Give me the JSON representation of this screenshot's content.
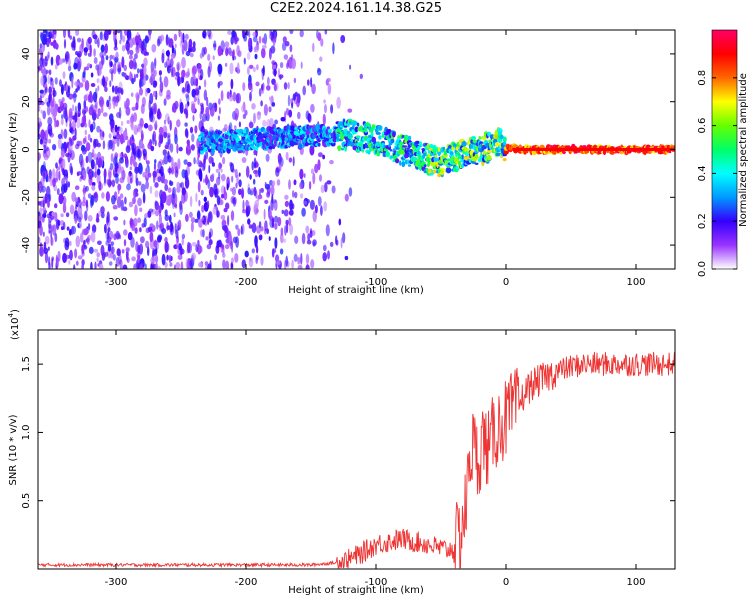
{
  "title": "C2E2.2024.161.14.38.G25",
  "chart_data": [
    {
      "type": "heatmap",
      "xlabel": "Height of straight line (km)",
      "ylabel": "Frequency (Hz)",
      "xlim": [
        -360,
        130
      ],
      "ylim": [
        -50,
        50
      ],
      "xticks": [
        -300,
        -200,
        -100,
        0,
        100
      ],
      "yticks": [
        -40,
        -20,
        0,
        20,
        40
      ],
      "colorbar": {
        "label": "Normalized spectral amplitude",
        "range": [
          0,
          1
        ],
        "ticks": [
          "0.0",
          "0.2",
          "0.4",
          "0.6",
          "0.8"
        ],
        "tick_values": [
          0.0,
          0.2,
          0.4,
          0.6,
          0.8
        ],
        "colors": [
          "#ffffff",
          "#9933ff",
          "#3300ff",
          "#0099ff",
          "#00ffff",
          "#00ff66",
          "#66ff00",
          "#ffff00",
          "#ff6600",
          "#ff0000",
          "#ff0066"
        ]
      },
      "ridge": {
        "x": [
          -230,
          -200,
          -170,
          -140,
          -120,
          -100,
          -80,
          -60,
          -50,
          -40,
          -30,
          -20,
          -10,
          -5,
          0,
          5,
          10,
          130
        ],
        "y": [
          3,
          4,
          5,
          6,
          6,
          4,
          0,
          -4,
          -6,
          -3,
          0,
          0,
          1,
          3,
          0,
          1,
          0,
          0
        ]
      },
      "noise_region_x": [
        -360,
        -140
      ]
    },
    {
      "type": "line",
      "xlabel": "Height of straight line (km)",
      "ylabel": "SNR (10 * v/v)",
      "y_multiplier_label": "(x10",
      "y_multiplier_exp": "4",
      "y_multiplier_close": ")",
      "xlim": [
        -360,
        130
      ],
      "ylim": [
        0,
        1.75
      ],
      "xticks": [
        -300,
        -200,
        -100,
        0,
        100
      ],
      "yticks": [
        0.5,
        1.0,
        1.5
      ],
      "ytick_labels": [
        "0.5",
        "1.0",
        "1.5"
      ],
      "color": "#ee3333",
      "series": [
        {
          "x": [
            -360,
            -300,
            -200,
            -150,
            -125,
            -110,
            -100,
            -90,
            -80,
            -70,
            -60,
            -50,
            -45,
            -40,
            -35,
            -30,
            -28,
            -25,
            -22,
            -20,
            -18,
            -15,
            -12,
            -10,
            -5,
            0,
            5,
            10,
            15,
            20,
            30,
            40,
            50,
            60,
            80,
            100,
            120,
            130
          ],
          "y": [
            0.03,
            0.03,
            0.03,
            0.03,
            0.05,
            0.12,
            0.18,
            0.2,
            0.22,
            0.2,
            0.18,
            0.15,
            0.14,
            0.15,
            0.25,
            0.5,
            0.85,
            0.9,
            0.8,
            0.85,
            0.95,
            0.9,
            0.85,
            1.0,
            1.05,
            1.1,
            1.15,
            1.2,
            1.3,
            1.35,
            1.4,
            1.45,
            1.48,
            1.5,
            1.5,
            1.5,
            1.5,
            1.5
          ]
        }
      ]
    }
  ]
}
